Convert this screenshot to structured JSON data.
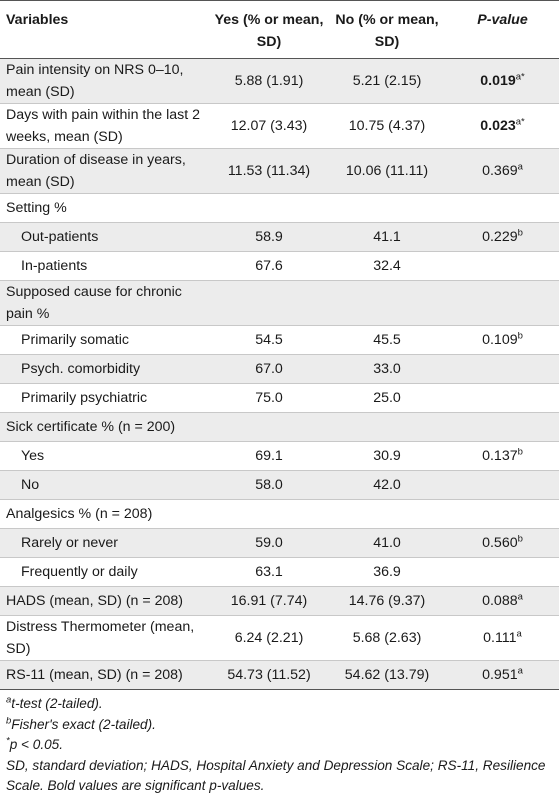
{
  "header": {
    "variables": "Variables",
    "yes": "Yes (% or mean, SD)",
    "no": "No (% or mean, SD)",
    "pvalue": "P-value"
  },
  "rows": [
    {
      "label": "Pain intensity on NRS 0–10, mean (SD)",
      "yes": "5.88 (1.91)",
      "no": "5.21 (2.15)",
      "p": "0.019",
      "sup": "a*",
      "bold": true
    },
    {
      "label": "Days with pain within the last 2 weeks, mean (SD)",
      "yes": "12.07 (3.43)",
      "no": "10.75 (4.37)",
      "p": "0.023",
      "sup": "a*",
      "bold": true
    },
    {
      "label": "Duration of disease in years, mean (SD)",
      "yes": "11.53 (11.34)",
      "no": "10.06 (11.11)",
      "p": "0.369",
      "sup": "a"
    },
    {
      "label": "Setting %",
      "yes": "",
      "no": "",
      "p": "",
      "sup": ""
    },
    {
      "label": "Out-patients",
      "yes": "58.9",
      "no": "41.1",
      "p": "0.229",
      "sup": "b"
    },
    {
      "label": "In-patients",
      "yes": "67.6",
      "no": "32.4",
      "p": "",
      "sup": ""
    },
    {
      "label": "Supposed cause for chronic pain %",
      "yes": "",
      "no": "",
      "p": "",
      "sup": ""
    },
    {
      "label": "Primarily somatic",
      "yes": "54.5",
      "no": "45.5",
      "p": "0.109",
      "sup": "b"
    },
    {
      "label": "Psych. comorbidity",
      "yes": "67.0",
      "no": "33.0",
      "p": "",
      "sup": ""
    },
    {
      "label": "Primarily psychiatric",
      "yes": "75.0",
      "no": "25.0",
      "p": "",
      "sup": ""
    },
    {
      "label": "Sick certificate % (n = 200)",
      "yes": "",
      "no": "",
      "p": "",
      "sup": ""
    },
    {
      "label": "Yes",
      "yes": "69.1",
      "no": "30.9",
      "p": "0.137",
      "sup": "b"
    },
    {
      "label": "No",
      "yes": "58.0",
      "no": "42.0",
      "p": "",
      "sup": ""
    },
    {
      "label": "Analgesics % (n = 208)",
      "yes": "",
      "no": "",
      "p": "",
      "sup": ""
    },
    {
      "label": "Rarely or never",
      "yes": "59.0",
      "no": "41.0",
      "p": "0.560",
      "sup": "b"
    },
    {
      "label": "Frequently or daily",
      "yes": "63.1",
      "no": "36.9",
      "p": "",
      "sup": ""
    },
    {
      "label": "HADS (mean, SD) (n = 208)",
      "yes": "16.91 (7.74)",
      "no": "14.76 (9.37)",
      "p": "0.088",
      "sup": "a"
    },
    {
      "label": "Distress Thermometer (mean, SD)",
      "yes": "6.24 (2.21)",
      "no": "5.68 (2.63)",
      "p": "0.111",
      "sup": "a"
    },
    {
      "label": "RS-11 (mean, SD) (n = 208)",
      "yes": "54.73 (11.52)",
      "no": "54.62 (13.79)",
      "p": "0.951",
      "sup": "a"
    }
  ],
  "notes": {
    "a_sup": "a",
    "a_text": "t-test (2-tailed).",
    "b_sup": "b",
    "b_text": "Fisher's exact (2-tailed).",
    "star_sup": "*",
    "star_text": "p < 0.05.",
    "abbrev": "SD, standard deviation; HADS, Hospital Anxiety and Depression Scale; RS-11, Resilience Scale. Bold values are significant p-values."
  }
}
